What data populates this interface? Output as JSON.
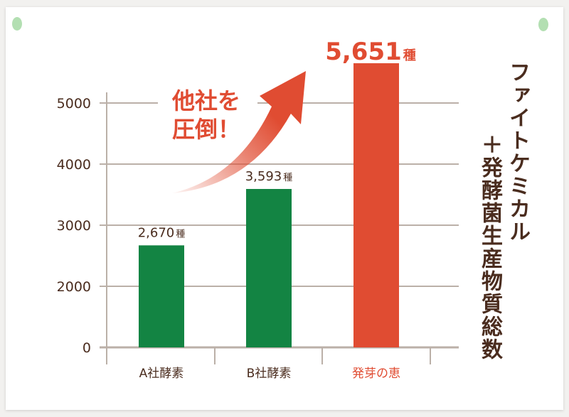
{
  "chart_data": {
    "type": "bar",
    "categories": [
      "A社酵素",
      "B社酵素",
      "発芽の恵"
    ],
    "values": [
      2670,
      3593,
      5651
    ],
    "data_labels": [
      "2,670",
      "3,593",
      "5,651"
    ],
    "unit": "種",
    "yticks": [
      0,
      2000,
      3000,
      4000,
      5000
    ],
    "ylim": [
      0,
      5000
    ],
    "grid": true,
    "colors": [
      "#138443",
      "#138443",
      "#e04c32"
    ],
    "category_label_colors": [
      "#4a2c1e",
      "#4a2c1e",
      "#e04c32"
    ],
    "annotation": "他社を圧倒！",
    "annotation_lines": [
      "他社を",
      "圧倒！"
    ],
    "ylabel_lines": [
      "ファイトケミカル",
      "＋発酵菌生産物質総数"
    ]
  },
  "colors": {
    "grid": "#bbb0a8",
    "text": "#4a2c1e",
    "accent": "#e04c32",
    "green": "#138443"
  }
}
